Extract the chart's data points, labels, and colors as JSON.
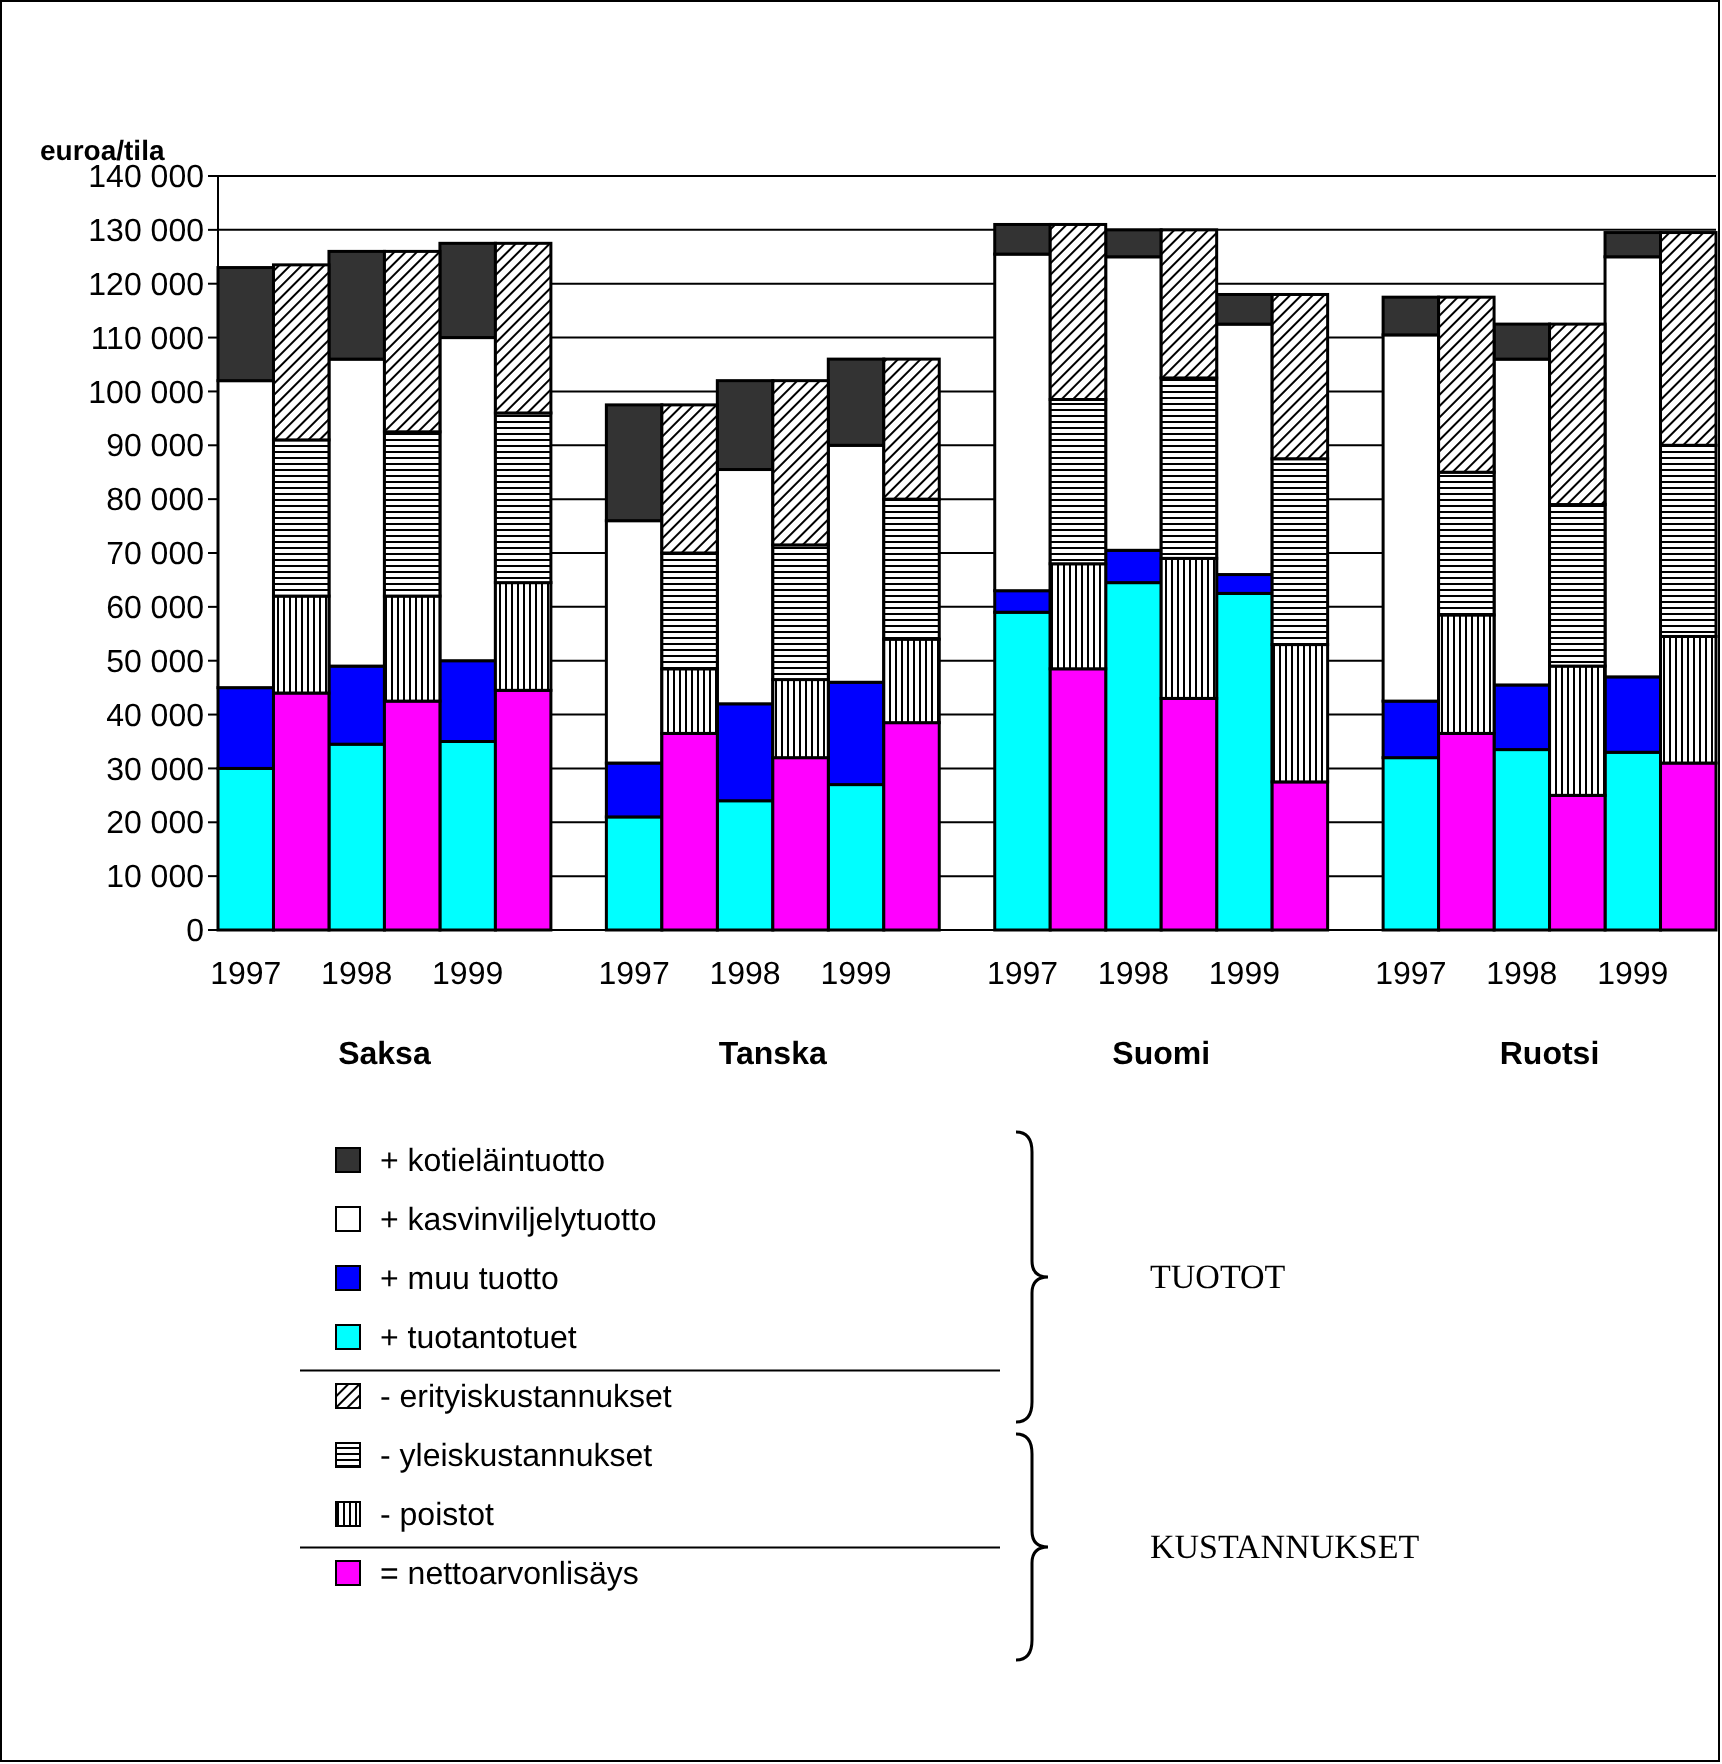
{
  "chart_data": {
    "type": "bar",
    "stacked": true,
    "ylabel": "euroa/tila",
    "categories": [
      "1997",
      null,
      "1998",
      null,
      "1999",
      null,
      null,
      "1997",
      null,
      "1998",
      null,
      "1999",
      null,
      null,
      "1997",
      null,
      "1998",
      null,
      "1999",
      null,
      null,
      "1997",
      null,
      "1998",
      null,
      "1999",
      null
    ],
    "series": [
      {
        "name": "+ tuotantotuet",
        "color": "#00ffff",
        "values": [
          30000,
          null,
          34500,
          null,
          35000,
          null,
          null,
          21000,
          null,
          24000,
          null,
          27000,
          null,
          null,
          59000,
          null,
          64500,
          null,
          62500,
          null,
          null,
          32000,
          null,
          33500,
          null,
          33000,
          null
        ]
      },
      {
        "name": "+ muu tuotto",
        "color": "#0000ff",
        "values": [
          15000,
          null,
          14500,
          null,
          15000,
          null,
          null,
          10000,
          null,
          18000,
          null,
          19000,
          null,
          null,
          4000,
          null,
          6000,
          null,
          3500,
          null,
          null,
          10500,
          null,
          12000,
          null,
          14000,
          null
        ]
      },
      {
        "name": "+ kasvinviljelytuotto",
        "color": "#ffffff",
        "values": [
          57000,
          null,
          57000,
          null,
          60000,
          null,
          null,
          45000,
          null,
          43500,
          null,
          44000,
          null,
          null,
          62500,
          null,
          54500,
          null,
          46500,
          null,
          null,
          68000,
          null,
          60500,
          null,
          78000,
          null
        ]
      },
      {
        "name": "+ kotieläintuotto",
        "color": "#333333",
        "values": [
          21000,
          null,
          20000,
          null,
          17500,
          null,
          null,
          21500,
          null,
          16500,
          null,
          16000,
          null,
          null,
          5500,
          null,
          5000,
          null,
          5500,
          null,
          null,
          7000,
          null,
          6500,
          null,
          4500,
          null
        ]
      },
      {
        "name": "= nettoarvonlisäys",
        "color": "#ff00ff",
        "values": [
          null,
          44000,
          null,
          42500,
          null,
          44500,
          null,
          null,
          36500,
          null,
          32000,
          null,
          38500,
          null,
          null,
          48500,
          null,
          43000,
          null,
          27500,
          null,
          null,
          36500,
          null,
          25000,
          null,
          31000
        ]
      },
      {
        "name": "- poistot",
        "color": "#000000",
        "values": [
          null,
          18000,
          null,
          19500,
          null,
          20000,
          null,
          null,
          12000,
          null,
          14500,
          null,
          15500,
          null,
          null,
          19500,
          null,
          26000,
          null,
          25500,
          null,
          null,
          22000,
          null,
          24000,
          null,
          23500
        ]
      },
      {
        "name": "- yleiskustannukset",
        "color": "#000000",
        "values": [
          null,
          29000,
          null,
          30500,
          null,
          31500,
          null,
          null,
          21500,
          null,
          25000,
          null,
          26000,
          null,
          null,
          30500,
          null,
          33500,
          null,
          34500,
          null,
          null,
          26500,
          null,
          30000,
          null,
          35500
        ]
      },
      {
        "name": "- erityiskustannukset",
        "color": "#000000",
        "values": [
          null,
          32500,
          null,
          33500,
          null,
          31500,
          null,
          null,
          27500,
          null,
          30500,
          null,
          26000,
          null,
          null,
          32500,
          null,
          27500,
          null,
          30500,
          null,
          null,
          32500,
          null,
          33500,
          null,
          39500
        ]
      }
    ],
    "ylim": [
      0,
      140000
    ],
    "yticks": [
      0,
      {
        "value": 10000,
        "label": "10 000"
      },
      {
        "value": 20000,
        "label": "20 000"
      },
      {
        "value": 30000,
        "label": "30 000"
      },
      {
        "value": 40000,
        "label": "40 000"
      },
      {
        "value": 50000,
        "label": "50 000"
      },
      {
        "value": 60000,
        "label": "60 000"
      },
      {
        "value": 70000,
        "label": "70 000"
      },
      {
        "value": 80000,
        "label": "80 000"
      },
      {
        "value": 90000,
        "label": "90 000"
      },
      {
        "value": 100000,
        "label": "100 000"
      },
      {
        "value": 110000,
        "label": "110 000"
      },
      {
        "value": 120000,
        "label": "120 000"
      },
      {
        "value": 130000,
        "label": "130 000"
      },
      {
        "value": 140000,
        "label": "140 000"
      }
    ],
    "grid": "y",
    "legend": "bottom",
    "annotations": [
      "Saksa",
      "Tanska",
      "Suomi",
      "Ruotsi",
      "TUOTOT",
      "KUSTANNUKSET"
    ]
  }
}
